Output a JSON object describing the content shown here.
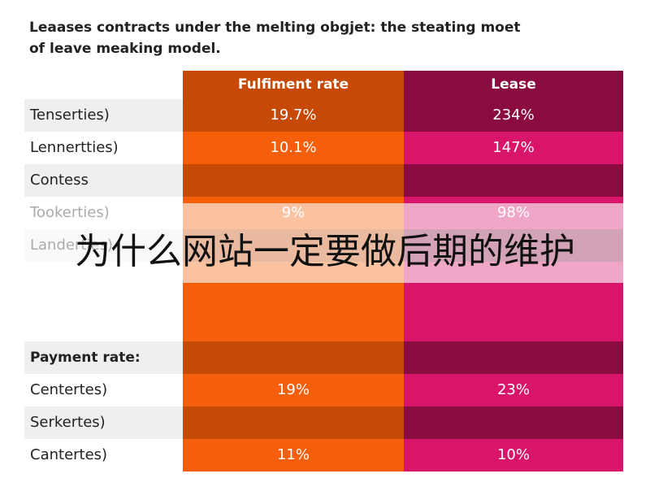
{
  "header": {
    "title_lines": [
      "Leaases contracts under the melting obgjet: the steating moet",
      "of leave meaking model."
    ]
  },
  "table": {
    "columns": [
      "Fulfiment rate",
      "Lease"
    ],
    "rows": [
      {
        "label": "Tenserties)",
        "cells": [
          "19.7%",
          "234%"
        ]
      },
      {
        "label": "Lennertties)",
        "cells": [
          "10.1%",
          "147%"
        ]
      },
      {
        "label": "Contess"
      },
      {
        "label": "Tookerties)",
        "cells": [
          "9%",
          "98%"
        ]
      },
      {
        "label": "Landerties)"
      },
      {
        "label": "Payment rate:"
      },
      {
        "label": "Centertes)",
        "cells": [
          "19%",
          "23%"
        ]
      },
      {
        "label": "Serkertes)"
      },
      {
        "label": "Cantertes)",
        "cells": [
          "11%",
          "10%"
        ]
      }
    ]
  },
  "overlay": {
    "text": "为什么网站一定要做后期的维护"
  }
}
